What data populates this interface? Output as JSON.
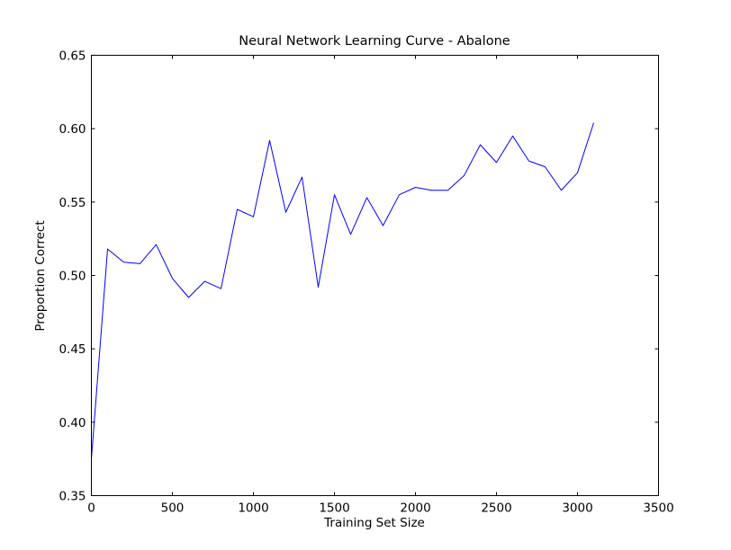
{
  "chart_data": {
    "type": "line",
    "title": "Neural Network Learning Curve - Abalone",
    "xlabel": "Training Set Size",
    "ylabel": "Proportion Correct",
    "xlim": [
      0,
      3500
    ],
    "ylim": [
      0.35,
      0.65
    ],
    "xticks": [
      0,
      500,
      1000,
      1500,
      2000,
      2500,
      3000,
      3500
    ],
    "yticks": [
      0.35,
      0.4,
      0.45,
      0.5,
      0.55,
      0.6,
      0.65
    ],
    "xtick_labels": [
      "0",
      "500",
      "1000",
      "1500",
      "2000",
      "2500",
      "3000",
      "3500"
    ],
    "ytick_labels": [
      "0.35",
      "0.40",
      "0.45",
      "0.50",
      "0.55",
      "0.60",
      "0.65"
    ],
    "grid": false,
    "series": [
      {
        "color": "#0000ff",
        "x": [
          0,
          100,
          200,
          300,
          400,
          500,
          600,
          700,
          800,
          900,
          1000,
          1100,
          1200,
          1300,
          1400,
          1500,
          1600,
          1700,
          1800,
          1900,
          2000,
          2100,
          2200,
          2300,
          2400,
          2500,
          2600,
          2700,
          2800,
          2900,
          3000,
          3100
        ],
        "y": [
          0.375,
          0.518,
          0.509,
          0.508,
          0.521,
          0.498,
          0.485,
          0.496,
          0.491,
          0.545,
          0.54,
          0.592,
          0.543,
          0.567,
          0.492,
          0.555,
          0.528,
          0.553,
          0.534,
          0.555,
          0.56,
          0.558,
          0.558,
          0.568,
          0.589,
          0.577,
          0.595,
          0.578,
          0.574,
          0.558,
          0.57,
          0.604
        ]
      }
    ]
  }
}
